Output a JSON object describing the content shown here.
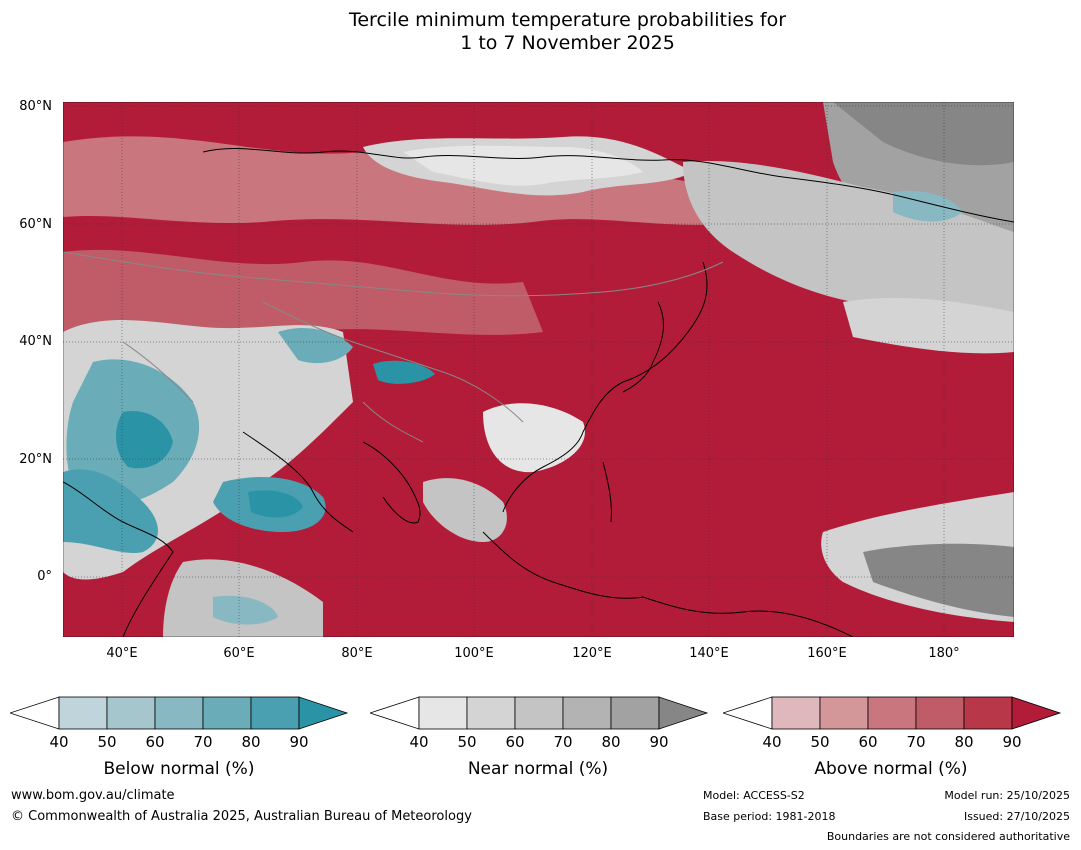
{
  "title_line1": "Tercile minimum temperature probabilities for",
  "title_line2": "1 to 7 November 2025",
  "lat_labels": [
    "80°N",
    "60°N",
    "40°N",
    "20°N",
    "0°"
  ],
  "lon_labels": [
    "40°E",
    "60°E",
    "80°E",
    "100°E",
    "120°E",
    "140°E",
    "160°E",
    "180°"
  ],
  "colors": {
    "below": [
      "#bfd4db",
      "#a5c6cc",
      "#88b8c1",
      "#6aacb8",
      "#4aa0b0",
      "#2a94a6"
    ],
    "near": [
      "#e6e6e6",
      "#d4d4d4",
      "#c4c4c4",
      "#b3b3b3",
      "#a2a2a2",
      "#868686"
    ],
    "above": [
      "#dfb8bd",
      "#d49799",
      "#c9767f",
      "#c05c68",
      "#b83849",
      "#b21c38"
    ]
  },
  "colorbars": [
    {
      "key": "below",
      "label": "Below normal (%)",
      "ticks": [
        "40",
        "50",
        "60",
        "70",
        "80",
        "90"
      ]
    },
    {
      "key": "near",
      "label": "Near normal (%)",
      "ticks": [
        "40",
        "50",
        "60",
        "70",
        "80",
        "90"
      ]
    },
    {
      "key": "above",
      "label": "Above normal (%)",
      "ticks": [
        "40",
        "50",
        "60",
        "70",
        "80",
        "90"
      ]
    }
  ],
  "footer": {
    "website": "www.bom.gov.au/climate",
    "copyright": "© Commonwealth of Australia 2025, Australian Bureau of Meteorology",
    "model": "Model: ACCESS-S2",
    "base_period": "Base period: 1981-2018",
    "model_run": "Model run: 25/10/2025",
    "issued": "Issued: 27/10/2025",
    "disclaimer": "Boundaries are not considered authoritative"
  }
}
